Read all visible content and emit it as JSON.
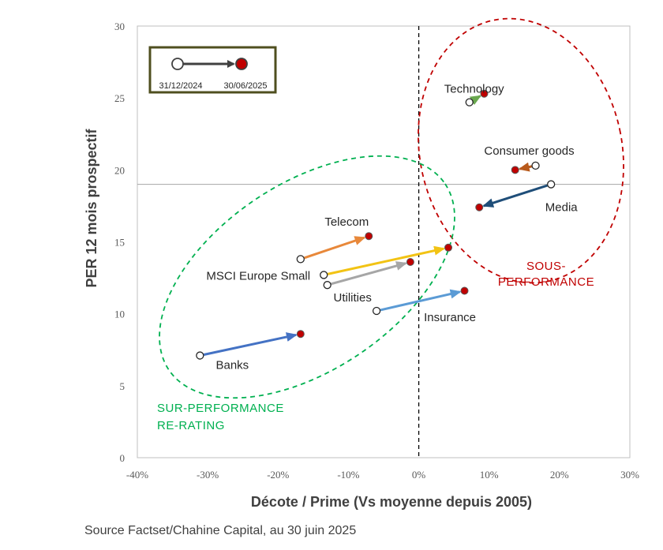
{
  "chart_data": {
    "type": "scatter",
    "xlabel": "Décote / Prime (Vs moyenne depuis 2005)",
    "ylabel": "PER 12 mois prospectif",
    "xlim": [
      -0.4,
      0.3
    ],
    "ylim": [
      0,
      30
    ],
    "xticks": [
      -0.4,
      -0.3,
      -0.2,
      -0.1,
      0.0,
      0.1,
      0.2,
      0.3
    ],
    "xtick_labels": [
      "-40%",
      "-30%",
      "-20%",
      "-10%",
      "0%",
      "10%",
      "20%",
      "30%"
    ],
    "yticks": [
      0,
      5,
      10,
      15,
      20,
      25,
      30
    ],
    "ytick_labels": [
      "0",
      "5",
      "10",
      "15",
      "20",
      "25",
      "30"
    ],
    "reference_lines": {
      "vertical_x": 0.0,
      "horizontal_y": 19.0
    },
    "legend": {
      "start_label": "31/12/2024",
      "end_label": "30/06/2025",
      "placement": "top-left"
    },
    "series": [
      {
        "name": "Technology",
        "start": [
          0.072,
          24.7
        ],
        "end": [
          0.093,
          25.3
        ],
        "color": "#6aa84f",
        "label_anchor": "above"
      },
      {
        "name": "Consumer goods",
        "start": [
          0.166,
          20.3
        ],
        "end": [
          0.137,
          20.0
        ],
        "color": "#b85a1c",
        "label_anchor": "above"
      },
      {
        "name": "Media",
        "start": [
          0.188,
          19.0
        ],
        "end": [
          0.086,
          17.4
        ],
        "color": "#1f4e79",
        "label_anchor": "below"
      },
      {
        "name": "Telecom",
        "start": [
          -0.168,
          13.8
        ],
        "end": [
          -0.071,
          15.4
        ],
        "color": "#e8883a",
        "label_anchor": "above"
      },
      {
        "name": "MSCI Europe Small",
        "start": [
          -0.135,
          12.7
        ],
        "end": [
          0.042,
          14.6
        ],
        "color": "#f2c314",
        "label_anchor": "left"
      },
      {
        "name": "Utilities",
        "start": [
          -0.13,
          12.0
        ],
        "end": [
          -0.012,
          13.6
        ],
        "color": "#a6a6a6",
        "label_anchor": "below"
      },
      {
        "name": "Insurance",
        "start": [
          -0.06,
          10.2
        ],
        "end": [
          0.065,
          11.6
        ],
        "color": "#5b9bd5",
        "label_anchor": "below"
      },
      {
        "name": "Banks",
        "start": [
          -0.311,
          7.1
        ],
        "end": [
          -0.168,
          8.6
        ],
        "color": "#4472c4",
        "label_anchor": "below"
      }
    ],
    "zones": [
      {
        "name": "sous-performance",
        "lines": [
          "SOUS-",
          "PERFORMANCE"
        ],
        "color": "#c00000"
      },
      {
        "name": "sur-performance",
        "lines": [
          "SUR-PERFORMANCE",
          "RE-RATING"
        ],
        "color": "#00b050"
      }
    ],
    "colors": {
      "start_marker": "#ffffff",
      "end_marker": "#c00000",
      "legend_border": "#4f4f1f",
      "legend_arrow": "#404040"
    }
  },
  "source": "Source Factset/Chahine Capital, au 30 juin 2025"
}
